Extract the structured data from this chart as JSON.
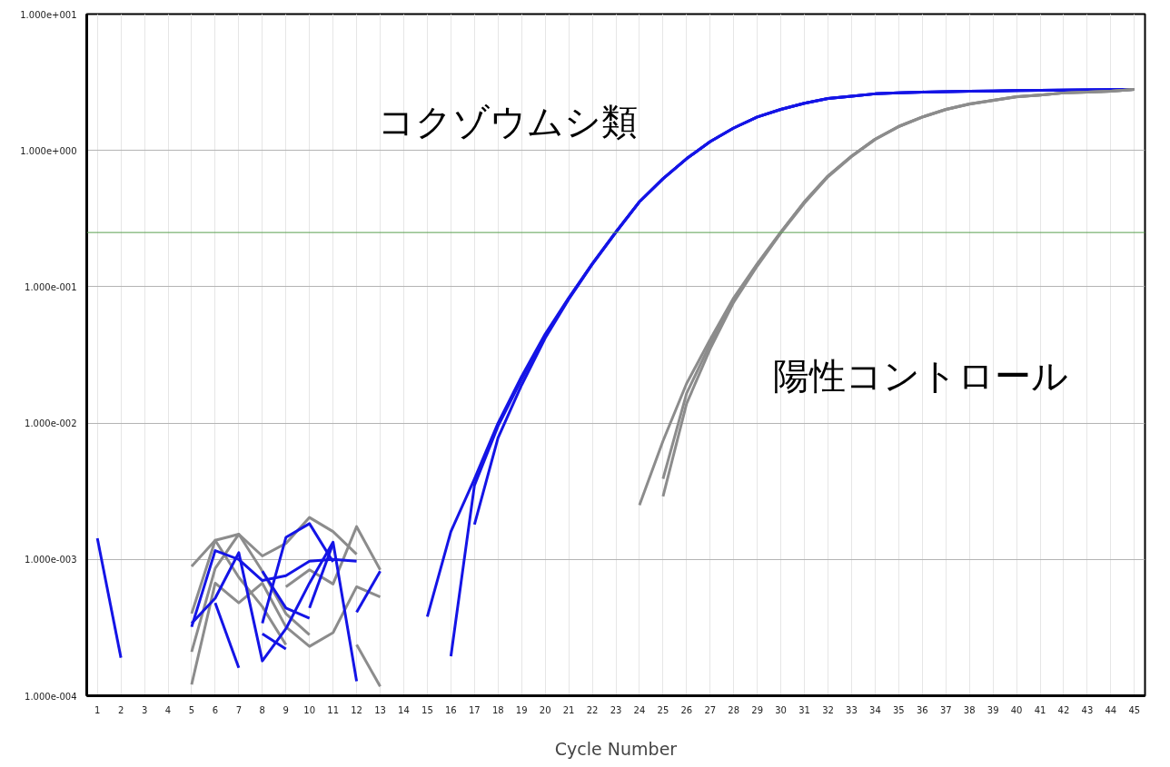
{
  "chart_data": {
    "type": "line",
    "xlabel": "Cycle Number",
    "log": "y",
    "grid": true,
    "line_style": "solid",
    "marker": "none",
    "xlim": [
      0.55,
      45.45
    ],
    "xticks": [
      1,
      2,
      3,
      4,
      5,
      6,
      7,
      8,
      9,
      10,
      11,
      12,
      13,
      14,
      15,
      16,
      17,
      18,
      19,
      20,
      21,
      22,
      23,
      24,
      25,
      26,
      27,
      28,
      29,
      30,
      31,
      32,
      33,
      34,
      35,
      36,
      37,
      38,
      39,
      40,
      41,
      42,
      43,
      44,
      45
    ],
    "ylim": [
      0.0001,
      10
    ],
    "yticks": [
      {
        "value": 0.0001,
        "label": "1.000e-004"
      },
      {
        "value": 0.001,
        "label": "1.000e-003"
      },
      {
        "value": 0.01,
        "label": "1.000e-002"
      },
      {
        "value": 0.1,
        "label": "1.000e-001"
      },
      {
        "value": 1,
        "label": "1.000e+000"
      },
      {
        "value": 10,
        "label": "1.000e+001"
      }
    ],
    "ref_lines": [
      {
        "axis": "y",
        "value": 0.25,
        "color": "#5aa050",
        "line_style": "solid"
      }
    ],
    "annotations": [
      "コクゾウムシ類",
      "陽性コントロール"
    ],
    "series": [
      {
        "color": "#1414e6",
        "x": [
          15,
          16,
          17,
          18,
          19,
          20,
          21,
          22,
          23,
          24,
          25,
          26,
          27,
          28,
          29,
          30,
          31,
          32,
          33,
          34,
          35,
          36,
          37,
          38,
          39,
          40,
          41,
          42,
          43,
          44,
          45
        ],
        "values": [
          0.00038,
          0.0016,
          0.0039,
          0.01,
          0.022,
          0.045,
          0.083,
          0.148,
          0.253,
          0.42,
          0.62,
          0.87,
          1.16,
          1.46,
          1.76,
          2.0,
          2.22,
          2.4,
          2.5,
          2.6,
          2.65,
          2.68,
          2.7,
          2.72,
          2.73,
          2.75,
          2.76,
          2.77,
          2.78,
          2.79,
          2.8
        ]
      },
      {
        "color": "#1414e6",
        "x": [
          16,
          17,
          18,
          19,
          20,
          21,
          22,
          23,
          24,
          25,
          26,
          27,
          28,
          29,
          30,
          31,
          32,
          33,
          34,
          35,
          36,
          37,
          38,
          39,
          40,
          41,
          42,
          43,
          44,
          45
        ],
        "values": [
          0.000195,
          0.0035,
          0.0095,
          0.021,
          0.044,
          0.082,
          0.147,
          0.252,
          0.42,
          0.62,
          0.87,
          1.16,
          1.46,
          1.76,
          2.0,
          2.22,
          2.4,
          2.5,
          2.6,
          2.65,
          2.68,
          2.7,
          2.72,
          2.73,
          2.75,
          2.76,
          2.77,
          2.78,
          2.79,
          2.8
        ]
      },
      {
        "color": "#1414e6",
        "x": [
          17,
          18,
          19,
          20,
          21,
          22,
          23,
          24,
          25,
          26,
          27,
          28,
          29,
          30,
          31,
          32,
          33,
          34,
          35,
          36,
          37,
          38,
          39,
          40,
          41,
          42,
          43,
          44,
          45
        ],
        "values": [
          0.0018,
          0.0078,
          0.019,
          0.042,
          0.081,
          0.146,
          0.25,
          0.42,
          0.62,
          0.87,
          1.16,
          1.46,
          1.76,
          2.0,
          2.22,
          2.4,
          2.5,
          2.6,
          2.65,
          2.68,
          2.7,
          2.72,
          2.73,
          2.75,
          2.76,
          2.77,
          2.78,
          2.79,
          2.8
        ]
      },
      {
        "color": "#8c8c8c",
        "x": [
          24,
          25,
          26,
          27,
          28,
          29,
          30,
          31,
          32,
          33,
          34,
          35,
          36,
          37,
          38,
          39,
          40,
          41,
          42,
          43,
          44,
          45
        ],
        "values": [
          0.0025,
          0.0074,
          0.0195,
          0.041,
          0.083,
          0.148,
          0.253,
          0.42,
          0.65,
          0.91,
          1.21,
          1.5,
          1.76,
          2.0,
          2.19,
          2.33,
          2.48,
          2.55,
          2.64,
          2.68,
          2.72,
          2.8
        ]
      },
      {
        "color": "#8c8c8c",
        "x": [
          25,
          26,
          27,
          28,
          29,
          30,
          31,
          32,
          33,
          34,
          35,
          36,
          37,
          38,
          39,
          40,
          41,
          42,
          43,
          44,
          45
        ],
        "values": [
          0.0039,
          0.0165,
          0.038,
          0.08,
          0.145,
          0.25,
          0.42,
          0.65,
          0.91,
          1.21,
          1.5,
          1.76,
          2.0,
          2.19,
          2.33,
          2.48,
          2.55,
          2.64,
          2.68,
          2.72,
          2.8
        ]
      },
      {
        "color": "#8c8c8c",
        "x": [
          25,
          26,
          27,
          28,
          29,
          30,
          31,
          32,
          33,
          34,
          35,
          36,
          37,
          38,
          39,
          40,
          41,
          42,
          43,
          44,
          45
        ],
        "values": [
          0.0029,
          0.0139,
          0.035,
          0.077,
          0.142,
          0.248,
          0.41,
          0.64,
          0.9,
          1.2,
          1.49,
          1.75,
          1.99,
          2.18,
          2.32,
          2.47,
          2.55,
          2.64,
          2.68,
          2.72,
          2.8
        ]
      },
      {
        "color": "#8c8c8c",
        "x": [
          5,
          6,
          7,
          8,
          9,
          10
        ],
        "values": [
          0.00089,
          0.00138,
          0.00153,
          0.00082,
          0.0004,
          0.00028
        ]
      },
      {
        "color": "#8c8c8c",
        "x": [
          5,
          6,
          7,
          8,
          9
        ],
        "values": [
          0.0004,
          0.00138,
          0.00074,
          0.00045,
          0.000237
        ]
      },
      {
        "color": "#8c8c8c",
        "x": [
          5,
          6,
          7,
          8,
          9,
          10,
          11,
          12,
          13
        ],
        "values": [
          0.000121,
          0.00067,
          0.00048,
          0.00067,
          0.00032,
          0.00023,
          0.00029,
          0.00063,
          0.00053
        ]
      },
      {
        "color": "#8c8c8c",
        "x": [
          5,
          6,
          7,
          8,
          9,
          10,
          11,
          12
        ],
        "values": [
          0.00021,
          0.00086,
          0.00153,
          0.00106,
          0.00131,
          0.00203,
          0.0016,
          0.00109
        ]
      },
      {
        "color": "#8c8c8c",
        "x": [
          9,
          10,
          11,
          12,
          13
        ],
        "values": [
          0.00063,
          0.00084,
          0.00066,
          0.00174,
          0.00084
        ]
      },
      {
        "color": "#8c8c8c",
        "x": [
          12,
          13
        ],
        "values": [
          0.000237,
          0.000117
        ]
      },
      {
        "color": "#1414e6",
        "x": [
          1,
          2
        ],
        "values": [
          0.00143,
          0.00019
        ]
      },
      {
        "color": "#1414e6",
        "x": [
          5,
          6,
          7,
          8,
          9,
          10,
          11,
          12
        ],
        "values": [
          0.00032,
          0.00116,
          0.001,
          0.0007,
          0.00076,
          0.00097,
          0.001,
          0.00097
        ]
      },
      {
        "color": "#1414e6",
        "x": [
          5,
          6,
          7,
          8,
          9,
          10,
          11,
          12
        ],
        "values": [
          0.00034,
          0.00052,
          0.00112,
          0.00018,
          0.00031,
          0.00067,
          0.00134,
          0.000128
        ]
      },
      {
        "color": "#1414e6",
        "x": [
          6,
          7
        ],
        "values": [
          0.00048,
          0.00016
        ]
      },
      {
        "color": "#1414e6",
        "x": [
          8,
          9,
          10,
          11
        ],
        "values": [
          0.00034,
          0.00145,
          0.00183,
          0.00096
        ]
      },
      {
        "color": "#1414e6",
        "x": [
          8,
          9
        ],
        "values": [
          0.000285,
          0.00022
        ]
      },
      {
        "color": "#1414e6",
        "x": [
          8,
          9,
          10
        ],
        "values": [
          0.00082,
          0.00044,
          0.00037
        ]
      },
      {
        "color": "#1414e6",
        "x": [
          10,
          11
        ],
        "values": [
          0.00044,
          0.00131
        ]
      },
      {
        "color": "#1414e6",
        "x": [
          12,
          13
        ],
        "values": [
          0.00041,
          0.00082
        ]
      }
    ]
  }
}
